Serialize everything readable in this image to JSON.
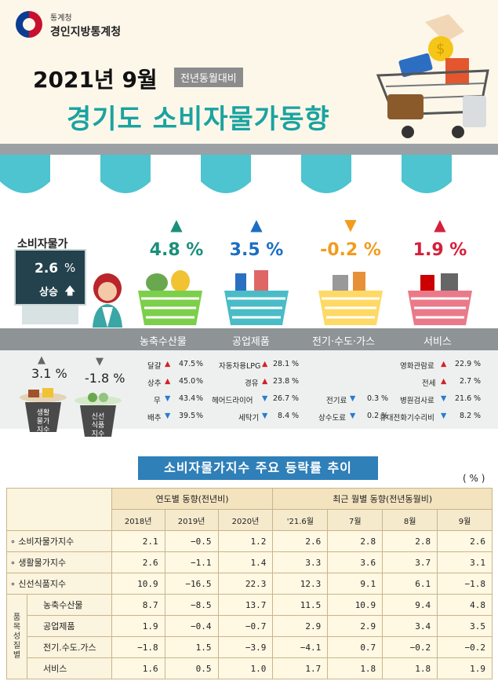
{
  "header": {
    "org_small": "통계청",
    "org": "경인지방통계청",
    "period": "2021년 9월",
    "compare": "전년동월대비",
    "title": "경기도 소비자물가동향"
  },
  "cpi": {
    "label": "소비자물가",
    "value": "2.6",
    "unit": "%",
    "direction": "상승"
  },
  "categories": [
    {
      "name": "농축수산물",
      "pct": "4.8 %",
      "arrow": "up",
      "color": "#1a8f7a"
    },
    {
      "name": "공업제품",
      "pct": "3.5 %",
      "arrow": "up",
      "color": "#1b6fc2"
    },
    {
      "name": "전기·수도·가스",
      "pct": "-0.2 %",
      "arrow": "down",
      "color": "#f29b1d"
    },
    {
      "name": "서비스",
      "pct": "1.9 %",
      "arrow": "up",
      "color": "#d61f3a"
    }
  ],
  "living": {
    "pct": "3.1 %",
    "label": [
      "생활",
      "물가",
      "지수"
    ]
  },
  "fresh": {
    "pct": "-1.8 %",
    "label": [
      "신선",
      "식품",
      "지수"
    ]
  },
  "items": {
    "agri": [
      {
        "name": "달걀",
        "value": "47.5",
        "dir": "up"
      },
      {
        "name": "상추",
        "value": "45.0",
        "dir": "up"
      },
      {
        "name": "무",
        "value": "43.4",
        "dir": "down"
      },
      {
        "name": "배추",
        "value": "39.5",
        "dir": "down"
      }
    ],
    "industry": [
      {
        "name": "자동차용LPG",
        "value": "28.1",
        "dir": "up"
      },
      {
        "name": "경유",
        "value": "23.8",
        "dir": "up"
      },
      {
        "name": "헤어드라이어",
        "value": "26.7",
        "dir": "down"
      },
      {
        "name": "세탁기",
        "value": "8.4",
        "dir": "down"
      }
    ],
    "utility": [
      {
        "name": "전기료",
        "value": "0.3",
        "dir": "down"
      },
      {
        "name": "상수도료",
        "value": "0.2",
        "dir": "down"
      }
    ],
    "service": [
      {
        "name": "영화관람료",
        "value": "22.9",
        "dir": "up"
      },
      {
        "name": "전세",
        "value": "2.7",
        "dir": "up"
      },
      {
        "name": "병원검사료",
        "value": "21.6",
        "dir": "down"
      },
      {
        "name": "휴대전화기수리비",
        "value": "8.2",
        "dir": "down"
      }
    ],
    "pct_unit": "%"
  },
  "table": {
    "title": "소비자물가지수 주요 등락률 추이",
    "unit": "( % )",
    "group_annual": "연도별 동향(전년비)",
    "group_monthly": "최근 월별 동향(전년동월비)",
    "columns": [
      "2018년",
      "2019년",
      "2020년",
      "'21.6월",
      "7월",
      "8월",
      "9월"
    ],
    "side_label": "품목성질별",
    "rows": [
      {
        "label": "∘ 소비자물가지수",
        "values": [
          "2.1",
          "−0.5",
          "1.2",
          "2.6",
          "2.8",
          "2.8",
          "2.6"
        ]
      },
      {
        "label": "∘ 생활물가지수",
        "values": [
          "2.6",
          "−1.1",
          "1.4",
          "3.3",
          "3.6",
          "3.7",
          "3.1"
        ]
      },
      {
        "label": "∘ 신선식품지수",
        "values": [
          "10.9",
          "−16.5",
          "22.3",
          "12.3",
          "9.1",
          "6.1",
          "−1.8"
        ]
      },
      {
        "label": "농축수산물",
        "values": [
          "8.7",
          "−8.5",
          "13.7",
          "11.5",
          "10.9",
          "9.4",
          "4.8"
        ]
      },
      {
        "label": "공업제품",
        "values": [
          "1.9",
          "−0.4",
          "−0.7",
          "2.9",
          "2.9",
          "3.4",
          "3.5"
        ]
      },
      {
        "label": "전기.수도.가스",
        "values": [
          "−1.8",
          "1.5",
          "−3.9",
          "−4.1",
          "0.7",
          "−0.2",
          "−0.2"
        ]
      },
      {
        "label": "서비스",
        "values": [
          "1.6",
          "0.5",
          "1.0",
          "1.7",
          "1.8",
          "1.8",
          "1.9"
        ]
      }
    ]
  }
}
